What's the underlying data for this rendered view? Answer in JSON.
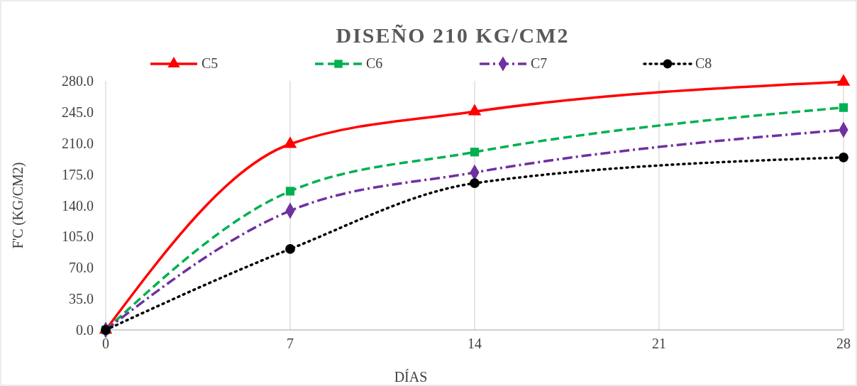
{
  "chart_data": {
    "type": "line",
    "title": "DISEÑO 210 KG/CM2",
    "xlabel": "DÍAS",
    "ylabel": "F'C (KG/CM2)",
    "x": [
      0,
      7,
      14,
      28
    ],
    "series": [
      {
        "name": "C5",
        "color": "#ff0000",
        "values": [
          0,
          209,
          245.5,
          279
        ],
        "marker": "triangle",
        "line_style": "solid"
      },
      {
        "name": "C6",
        "color": "#00b050",
        "values": [
          0,
          156,
          200,
          250
        ],
        "marker": "square",
        "line_style": "dashed"
      },
      {
        "name": "C7",
        "color": "#7030a0",
        "values": [
          0,
          134,
          177,
          225
        ],
        "marker": "diamond",
        "line_style": "dashdot"
      },
      {
        "name": "C8",
        "color": "#000000",
        "values": [
          0,
          91,
          165,
          194
        ],
        "marker": "circle",
        "line_style": "dotted"
      }
    ],
    "xlim": [
      0,
      28
    ],
    "xticks": [
      0,
      7,
      14,
      21,
      28
    ],
    "ylim": [
      0,
      280
    ],
    "yticks": [
      {
        "value": 0,
        "label": "0.0"
      },
      {
        "value": 35,
        "label": "35.0"
      },
      {
        "value": 70,
        "label": "70.0"
      },
      {
        "value": 105,
        "label": "105.0"
      },
      {
        "value": 140,
        "label": "140.0"
      },
      {
        "value": 175,
        "label": "175.0"
      },
      {
        "value": 210,
        "label": "210.0"
      },
      {
        "value": 245,
        "label": "245.0"
      },
      {
        "value": 280,
        "label": "280.0"
      }
    ],
    "grid": "x",
    "legend": "top"
  }
}
